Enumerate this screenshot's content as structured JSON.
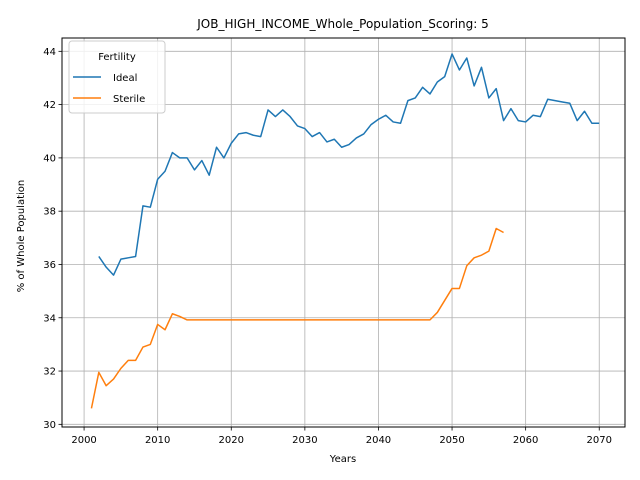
{
  "chart_data": {
    "type": "line",
    "title": "JOB_HIGH_INCOME_Whole_Population_Scoring: 5",
    "xlabel": "Years",
    "ylabel": "% of Whole Population",
    "xlim": [
      1997,
      2073.5
    ],
    "ylim": [
      29.9,
      44.5
    ],
    "xticks": [
      2000,
      2010,
      2020,
      2030,
      2040,
      2050,
      2060,
      2070
    ],
    "yticks": [
      30,
      32,
      34,
      36,
      38,
      40,
      42,
      44
    ],
    "grid": true,
    "legend": {
      "title": "Fertility",
      "placement": "top-left"
    },
    "series": [
      {
        "name": "Ideal",
        "color": "#1f77b4",
        "x": [
          2002,
          2003,
          2004,
          2005,
          2006,
          2007,
          2008,
          2009,
          2010,
          2011,
          2012,
          2013,
          2014,
          2015,
          2016,
          2017,
          2018,
          2019,
          2020,
          2021,
          2022,
          2023,
          2024,
          2025,
          2026,
          2027,
          2028,
          2029,
          2030,
          2031,
          2032,
          2033,
          2034,
          2035,
          2036,
          2037,
          2038,
          2039,
          2040,
          2041,
          2042,
          2043,
          2044,
          2045,
          2046,
          2047,
          2048,
          2049,
          2050,
          2051,
          2052,
          2053,
          2054,
          2055,
          2056,
          2057,
          2058,
          2059,
          2060,
          2061,
          2062,
          2063,
          2064,
          2065,
          2066,
          2067,
          2068,
          2069,
          2070
        ],
        "values": [
          36.3,
          35.9,
          35.6,
          36.2,
          36.25,
          36.3,
          38.2,
          38.15,
          39.2,
          39.5,
          40.2,
          40.0,
          40.0,
          39.55,
          39.9,
          39.35,
          40.4,
          40.0,
          40.55,
          40.9,
          40.95,
          40.85,
          40.8,
          41.8,
          41.55,
          41.8,
          41.55,
          41.2,
          41.1,
          40.8,
          40.95,
          40.6,
          40.7,
          40.4,
          40.5,
          40.75,
          40.9,
          41.25,
          41.45,
          41.6,
          41.35,
          41.3,
          42.15,
          42.25,
          42.65,
          42.4,
          42.85,
          43.05,
          43.9,
          43.3,
          43.75,
          42.7,
          43.4,
          42.25,
          42.6,
          41.4,
          41.85,
          41.4,
          41.35,
          41.6,
          41.55,
          42.2,
          42.15,
          42.1,
          42.05,
          41.4,
          41.75,
          41.3,
          41.3
        ]
      },
      {
        "name": "Sterile",
        "color": "#ff7f0e",
        "x": [
          2001,
          2002,
          2003,
          2004,
          2005,
          2006,
          2007,
          2008,
          2009,
          2010,
          2011,
          2012,
          2013,
          2014,
          2015,
          2016,
          2017,
          2018,
          2019,
          2020,
          2021,
          2022,
          2023,
          2024,
          2025,
          2026,
          2027,
          2028,
          2029,
          2030,
          2031,
          2032,
          2033,
          2034,
          2035,
          2036,
          2037,
          2038,
          2039,
          2040,
          2041,
          2042,
          2043,
          2044,
          2045,
          2046,
          2047,
          2048,
          2049,
          2050,
          2051,
          2052,
          2053,
          2054,
          2055,
          2056,
          2057
        ],
        "values": [
          30.6,
          31.95,
          31.45,
          31.7,
          32.1,
          32.4,
          32.4,
          32.9,
          33.0,
          33.75,
          33.55,
          34.15,
          34.05,
          33.92,
          33.92,
          33.92,
          33.92,
          33.92,
          33.92,
          33.92,
          33.92,
          33.92,
          33.92,
          33.92,
          33.92,
          33.92,
          33.92,
          33.92,
          33.92,
          33.92,
          33.92,
          33.92,
          33.92,
          33.92,
          33.92,
          33.92,
          33.92,
          33.92,
          33.92,
          33.92,
          33.92,
          33.92,
          33.92,
          33.92,
          33.92,
          33.92,
          33.92,
          34.2,
          34.65,
          35.1,
          35.1,
          35.95,
          36.25,
          36.35,
          36.5,
          37.35,
          37.2
        ]
      }
    ]
  }
}
